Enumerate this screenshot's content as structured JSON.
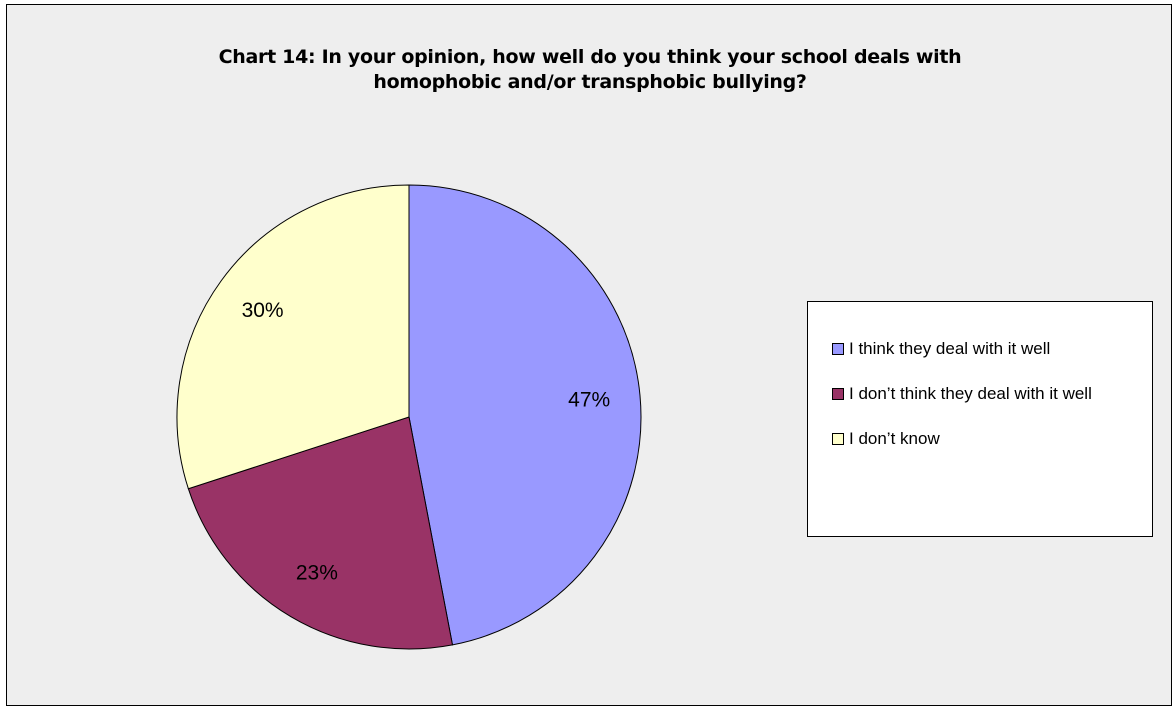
{
  "chart_data": {
    "type": "pie",
    "title": "Chart 14: In your opinion, how well do you think your school deals with homophobic and/or transphobic bullying?",
    "title_lines": [
      "Chart 14: In your opinion, how well do you think your school deals with",
      "homophobic and/or transphobic bullying?"
    ],
    "categories": [
      "I think they deal with it well",
      "I don’t think they deal with it well",
      "I don’t know"
    ],
    "values": [
      47,
      23,
      30
    ],
    "data_labels": [
      "47%",
      "23%",
      "30%"
    ],
    "colors": [
      "#9999ff",
      "#993366",
      "#ffffcc"
    ],
    "legend_position": "right"
  }
}
